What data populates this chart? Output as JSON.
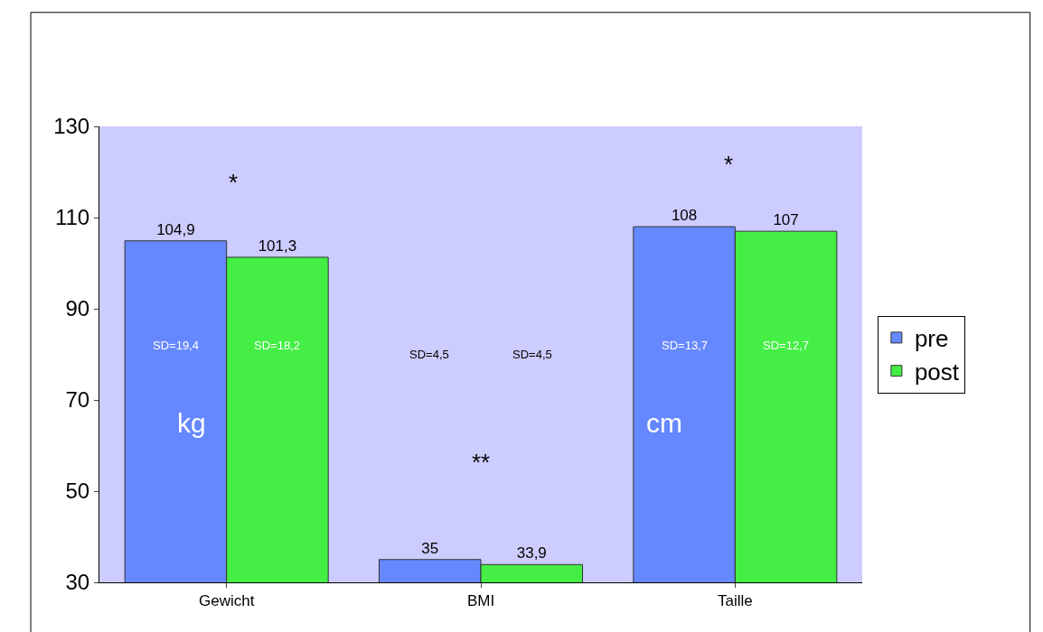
{
  "chart_data": {
    "type": "bar",
    "categories": [
      "Gewicht",
      "BMI",
      "Taille"
    ],
    "series": [
      {
        "name": "pre",
        "color": "#6688ff",
        "values": [
          104.9,
          35,
          108
        ],
        "value_labels": [
          "104,9",
          "35",
          "108"
        ]
      },
      {
        "name": "post",
        "color": "#44ee44",
        "values": [
          101.3,
          33.9,
          107
        ],
        "value_labels": [
          "101,3",
          "33,9",
          "107"
        ]
      }
    ],
    "ylim": [
      30,
      130
    ],
    "yticks": [
      30,
      50,
      70,
      90,
      110,
      130
    ],
    "grid": false,
    "legend": "right",
    "annotations": [
      {
        "text": "SD=19,4",
        "x": "Gewicht",
        "y": 82
      },
      {
        "text": "SD=18,2",
        "x": "Gewicht",
        "y": 82
      },
      "SD=4,5",
      "SD=4,5",
      {
        "text": "SD=13,7",
        "x": "Taille",
        "y": 82
      },
      {
        "text": "SD=12,7",
        "x": "Taille",
        "y": 82
      },
      "kg",
      "cm",
      "*",
      "**",
      "*"
    ]
  }
}
